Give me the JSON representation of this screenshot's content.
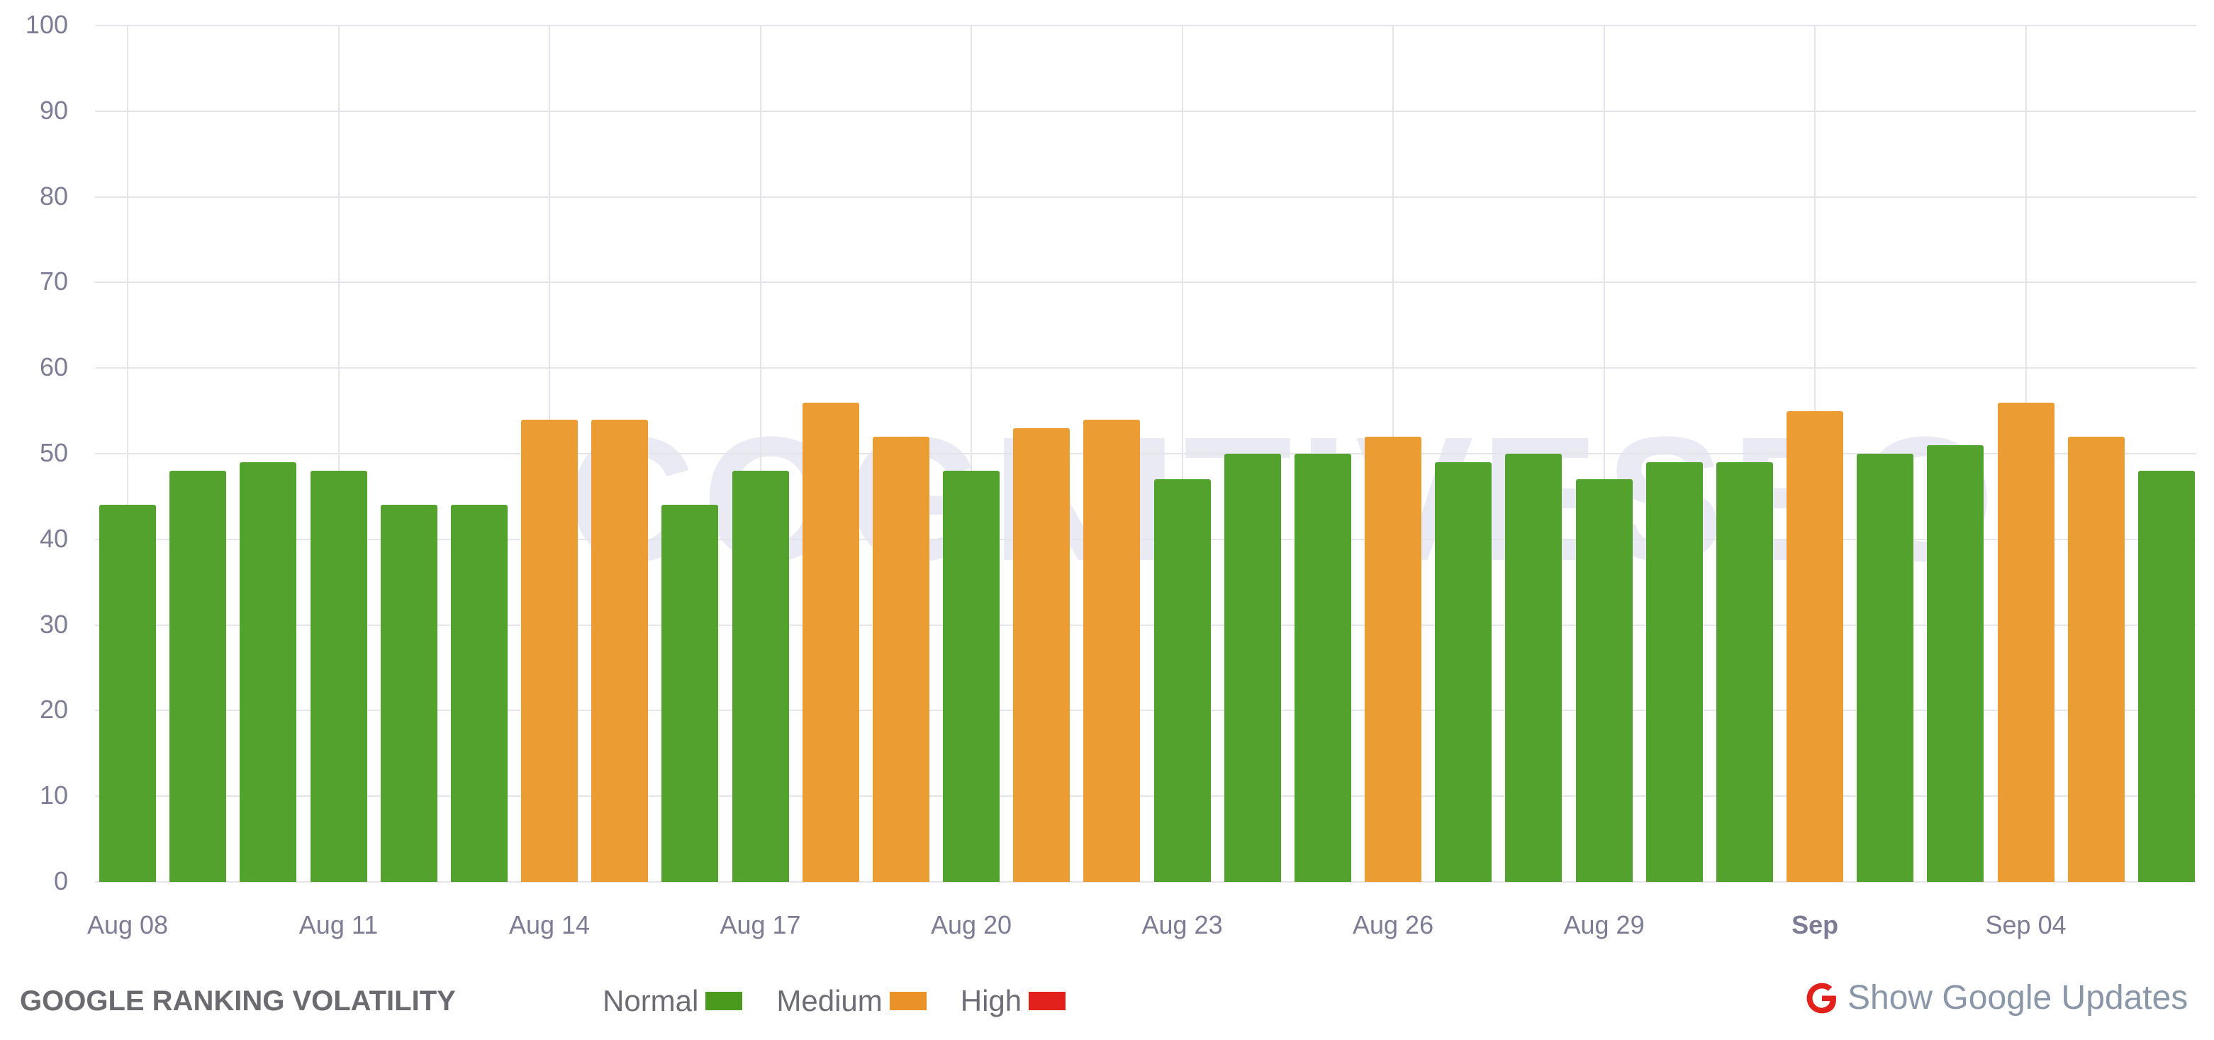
{
  "chart_data": {
    "type": "bar",
    "title": "GOOGLE RANKING VOLATILITY",
    "xlabel": "",
    "ylabel": "",
    "ylim": [
      0,
      100
    ],
    "yticks": [
      0,
      10,
      20,
      30,
      40,
      50,
      60,
      70,
      80,
      90,
      100
    ],
    "grid": true,
    "x_tick_labels": [
      {
        "index": 0,
        "label": "Aug 08",
        "bold": false
      },
      {
        "index": 3,
        "label": "Aug 11",
        "bold": false
      },
      {
        "index": 6,
        "label": "Aug 14",
        "bold": false
      },
      {
        "index": 9,
        "label": "Aug 17",
        "bold": false
      },
      {
        "index": 12,
        "label": "Aug 20",
        "bold": false
      },
      {
        "index": 15,
        "label": "Aug 23",
        "bold": false
      },
      {
        "index": 18,
        "label": "Aug 26",
        "bold": false
      },
      {
        "index": 21,
        "label": "Aug 29",
        "bold": false
      },
      {
        "index": 24,
        "label": "Sep",
        "bold": true
      },
      {
        "index": 27,
        "label": "Sep 04",
        "bold": false
      }
    ],
    "categories": [
      "Aug 08",
      "Aug 09",
      "Aug 10",
      "Aug 11",
      "Aug 12",
      "Aug 13",
      "Aug 14",
      "Aug 15",
      "Aug 16",
      "Aug 17",
      "Aug 18",
      "Aug 19",
      "Aug 20",
      "Aug 21",
      "Aug 22",
      "Aug 23",
      "Aug 24",
      "Aug 25",
      "Aug 26",
      "Aug 27",
      "Aug 28",
      "Aug 29",
      "Aug 30",
      "Aug 31",
      "Sep 01",
      "Sep 02",
      "Sep 03",
      "Sep 04",
      "Sep 05",
      "Sep 06"
    ],
    "values": [
      44,
      48,
      49,
      48,
      44,
      44,
      54,
      54,
      44,
      48,
      56,
      52,
      48,
      53,
      54,
      47,
      50,
      50,
      52,
      49,
      50,
      47,
      49,
      49,
      55,
      50,
      51,
      56,
      52,
      48
    ],
    "levels": [
      "Normal",
      "Normal",
      "Normal",
      "Normal",
      "Normal",
      "Normal",
      "Medium",
      "Medium",
      "Normal",
      "Normal",
      "Medium",
      "Medium",
      "Normal",
      "Medium",
      "Medium",
      "Normal",
      "Normal",
      "Normal",
      "Medium",
      "Normal",
      "Normal",
      "Normal",
      "Normal",
      "Normal",
      "Medium",
      "Normal",
      "Normal",
      "Medium",
      "Medium",
      "Normal"
    ],
    "legend": [
      {
        "label": "Normal",
        "color": "#4a9a1e"
      },
      {
        "label": "Medium",
        "color": "#ea9228"
      },
      {
        "label": "High",
        "color": "#e2211c"
      }
    ],
    "bar_colors": {
      "Normal": "#52a22d",
      "Medium": "#eb9c32",
      "High": "#e2211c"
    },
    "legend_position": "bottom"
  },
  "watermark": "COGNITIVESEO",
  "footer": {
    "title": "GOOGLE RANKING VOLATILITY",
    "legend": {
      "normal": "Normal",
      "medium": "Medium",
      "high": "High"
    },
    "google_updates_label": "Show Google Updates",
    "google_icon_color": "#e2211c"
  }
}
